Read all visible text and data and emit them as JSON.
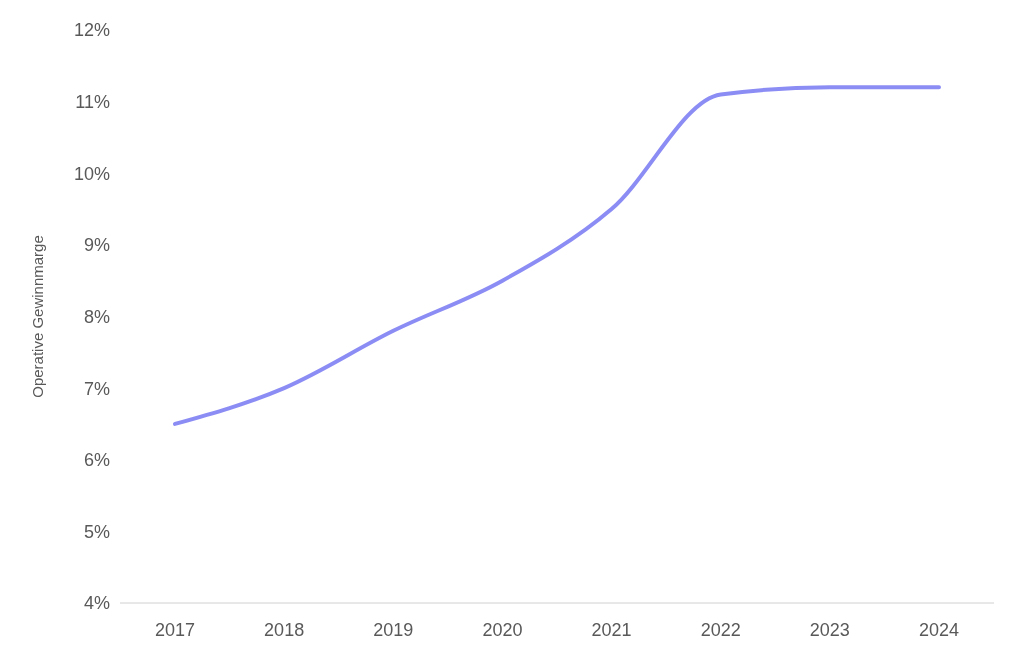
{
  "chart_data": {
    "type": "line",
    "ylabel": "Operative Gewinnmarge",
    "categories": [
      "2017",
      "2018",
      "2019",
      "2020",
      "2021",
      "2022",
      "2023",
      "2024"
    ],
    "series": [
      {
        "color": "#8c8cf5",
        "values": [
          6.5,
          7.0,
          7.8,
          8.5,
          9.5,
          11.1,
          11.2,
          11.2
        ]
      }
    ],
    "ylim": [
      4,
      12
    ],
    "yticks": [
      {
        "value": 4,
        "label": "4%"
      },
      {
        "value": 5,
        "label": "5%"
      },
      {
        "value": 6,
        "label": "6%"
      },
      {
        "value": 7,
        "label": "7%"
      },
      {
        "value": 8,
        "label": "8%"
      },
      {
        "value": 9,
        "label": "9%"
      },
      {
        "value": 10,
        "label": "10%"
      },
      {
        "value": 11,
        "label": "11%"
      },
      {
        "value": 12,
        "label": "12%"
      }
    ],
    "grid": false,
    "legend": false,
    "marker": "none",
    "line_style": "solid"
  }
}
